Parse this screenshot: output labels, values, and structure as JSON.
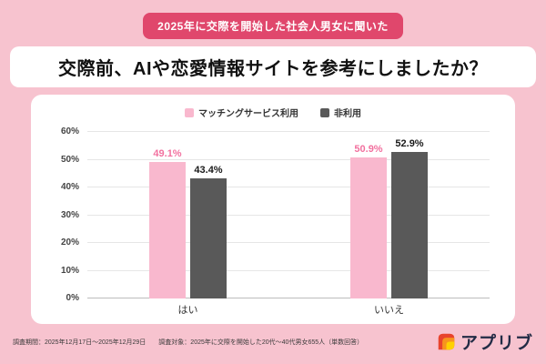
{
  "page": {
    "badge": "2025年に交際を開始した社会人男女に聞いた",
    "title": "交際前、AIや恋愛情報サイトを参考にしましたか？"
  },
  "footer": {
    "period": "調査期間：2025年12月17日～2025年12月29日",
    "target": "調査対象：2025年に交際を開始した20代～40代男女655人（単数回答）",
    "logo_text": "アプリブ"
  },
  "colors": {
    "background": "#f7c3cf",
    "badge_bg": "#e0476c",
    "card_bg": "#ffffff",
    "bar_pink": "#f9b8ce",
    "bar_gray": "#595959",
    "pink_value_label": "#f2719f",
    "gray_value_label": "#1a1a1a"
  },
  "chart_data": {
    "type": "bar",
    "title": "交際前、AIや恋愛情報サイトを参考にしましたか？",
    "categories": [
      "はい",
      "いいえ"
    ],
    "series": [
      {
        "name": "マッチングサービス利用",
        "values": [
          49.1,
          50.9
        ],
        "color": "#f9b8ce",
        "label_color": "#f2719f"
      },
      {
        "name": "非利用",
        "values": [
          43.4,
          52.9
        ],
        "color": "#595959",
        "label_color": "#1a1a1a"
      }
    ],
    "xlabel": "",
    "ylabel": "",
    "ylim": [
      0,
      60
    ],
    "yticks": [
      "60%",
      "50%",
      "40%",
      "30%",
      "20%",
      "10%",
      "0%"
    ],
    "grid": true,
    "legend_position": "top"
  }
}
